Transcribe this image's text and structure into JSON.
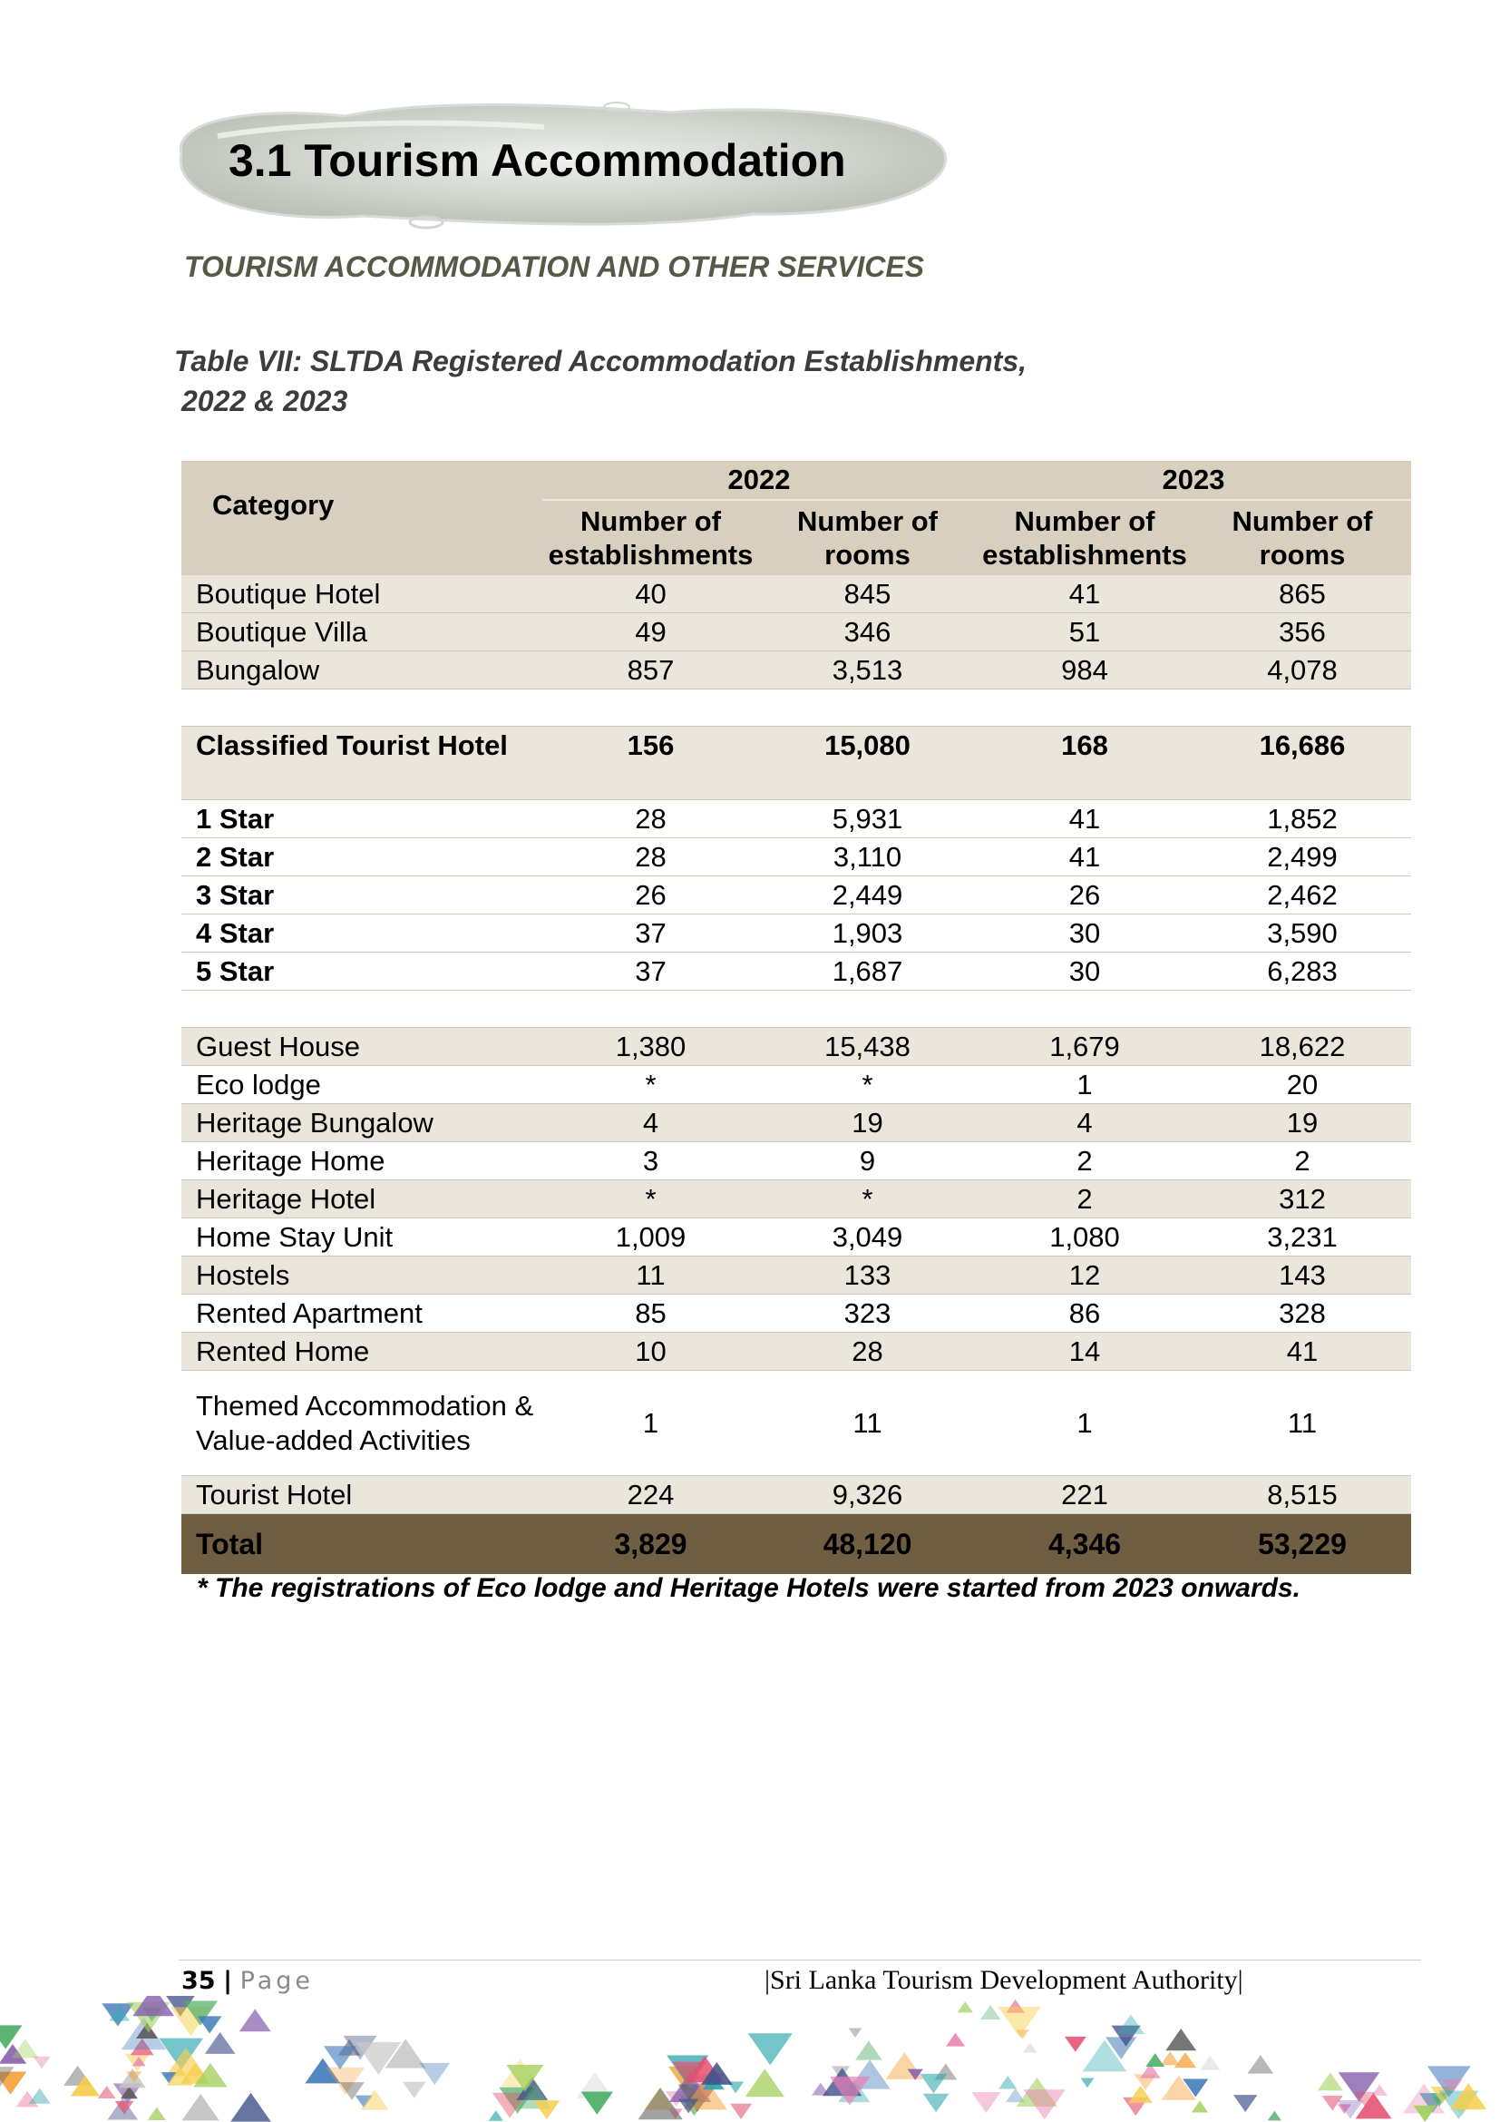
{
  "heading": "3.1 Tourism Accommodation",
  "subtitle": "TOURISM ACCOMMODATION AND OTHER SERVICES",
  "caption": {
    "line1": "Table VII: SLTDA Registered Accommodation Establishments,",
    "line2": "2022 & 2023"
  },
  "table": {
    "category_header": "Category",
    "year_2022": "2022",
    "year_2023": "2023",
    "col_establishments": "Number of establishments",
    "col_rooms": "Number of rooms",
    "rows": {
      "boutique_hotel": [
        "Boutique Hotel",
        "40",
        "845",
        "41",
        "865"
      ],
      "boutique_villa": [
        "Boutique Villa",
        "49",
        "346",
        "51",
        "356"
      ],
      "bungalow": [
        "Bungalow",
        "857",
        "3,513",
        "984",
        "4,078"
      ],
      "classified": [
        "Classified Tourist Hotel",
        "156",
        "15,080",
        "168",
        "16,686"
      ],
      "star1": [
        "1 Star",
        "28",
        "5,931",
        "41",
        "1,852"
      ],
      "star2": [
        "2 Star",
        "28",
        "3,110",
        "41",
        "2,499"
      ],
      "star3": [
        "3 Star",
        "26",
        "2,449",
        "26",
        "2,462"
      ],
      "star4": [
        "4 Star",
        "37",
        "1,903",
        "30",
        "3,590"
      ],
      "star5": [
        "5 Star",
        "37",
        "1,687",
        "30",
        "6,283"
      ],
      "guest_house": [
        "Guest House",
        "1,380",
        "15,438",
        "1,679",
        "18,622"
      ],
      "eco_lodge": [
        "Eco lodge",
        "*",
        "*",
        "1",
        "20"
      ],
      "heritage_bungalow": [
        "Heritage Bungalow",
        "4",
        "19",
        "4",
        "19"
      ],
      "heritage_home": [
        "Heritage Home",
        "3",
        "9",
        "2",
        "2"
      ],
      "heritage_hotel": [
        "Heritage Hotel",
        "*",
        "*",
        "2",
        "312"
      ],
      "home_stay": [
        "Home Stay Unit",
        "1,009",
        "3,049",
        "1,080",
        "3,231"
      ],
      "hostels": [
        "Hostels",
        "11",
        "133",
        "12",
        "143"
      ],
      "rented_apartment": [
        "Rented Apartment",
        "85",
        "323",
        "86",
        "328"
      ],
      "rented_home": [
        "Rented Home",
        "10",
        "28",
        "14",
        "41"
      ],
      "themed": [
        "Themed Accommodation & Value-added Activities",
        "1",
        "11",
        "1",
        "11"
      ],
      "tourist_hotel": [
        "Tourist Hotel",
        "224",
        "9,326",
        "221",
        "8,515"
      ]
    },
    "total": [
      "Total",
      "3,829",
      "48,120",
      "4,346",
      "53,229"
    ]
  },
  "note": "* The registrations of Eco lodge and Heritage Hotels were started from 2023 onwards.",
  "footer": {
    "page_number": "35",
    "separator": "|",
    "page_label": "Page",
    "organization": "|Sri Lanka Tourism Development Authority|"
  },
  "colors": {
    "header_bg": "#d9cfbf",
    "row_shade": "#ebe6dc",
    "total_bg": "#705e43",
    "subtitle": "#545a46"
  }
}
